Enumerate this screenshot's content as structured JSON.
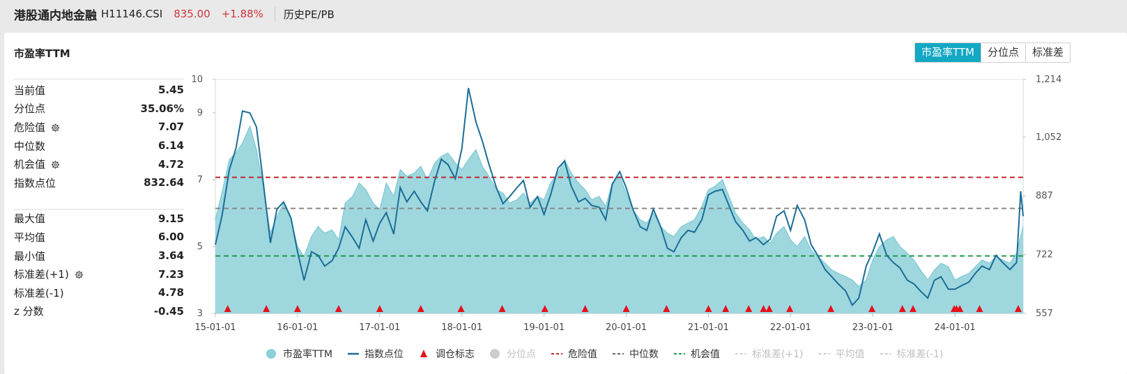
{
  "header": {
    "name": "港股通内地金融",
    "code": "H11146.CSI",
    "price": "835.00",
    "change": "+1.88%",
    "tab": "历史PE/PB"
  },
  "card": {
    "title": "市盈率TTM",
    "buttons": [
      "市盈率TTM",
      "分位点",
      "标准差"
    ],
    "active_button": "市盈率TTM"
  },
  "stats_top": [
    {
      "label": "当前值",
      "value": "5.45",
      "gear": false
    },
    {
      "label": "分位点",
      "value": "35.06%",
      "gear": false
    },
    {
      "label": "危险值",
      "value": "7.07",
      "gear": true
    },
    {
      "label": "中位数",
      "value": "6.14",
      "gear": false
    },
    {
      "label": "机会值",
      "value": "4.72",
      "gear": true
    },
    {
      "label": "指数点位",
      "value": "832.64",
      "gear": false
    }
  ],
  "stats_bottom": [
    {
      "label": "最大值",
      "value": "9.15",
      "gear": false
    },
    {
      "label": "平均值",
      "value": "6.00",
      "gear": false
    },
    {
      "label": "最小值",
      "value": "3.64",
      "gear": false
    },
    {
      "label": "标准差(+1)",
      "value": "7.23",
      "gear": true
    },
    {
      "label": "标准差(-1)",
      "value": "4.78",
      "gear": false
    },
    {
      "label": "z 分数",
      "value": "-0.45",
      "gear": false
    }
  ],
  "colors": {
    "area_fill": "#9fd7df",
    "area_line": "#7ccad6",
    "index_line": "#1a6d96",
    "danger": "#c0272d",
    "median": "#888888",
    "opportunity": "#1f9a4a",
    "marker": "#e8101a",
    "accent": "#13a8c4"
  },
  "chart_data": {
    "type": "line",
    "x_ticks": [
      "15-01-01",
      "16-01-01",
      "17-01-01",
      "18-01-01",
      "19-01-01",
      "20-01-01",
      "21-01-01",
      "22-01-01",
      "23-01-01",
      "24-01-01"
    ],
    "x_range": [
      2015.0,
      2024.83
    ],
    "y_left_ticks": [
      "10",
      "9",
      "7",
      "5",
      "3"
    ],
    "y_left_range": [
      3,
      10
    ],
    "y_right_ticks": [
      "1,214",
      "1,052",
      "887",
      "722",
      "557"
    ],
    "y_right_range": [
      557,
      1214
    ],
    "reference_lines": {
      "danger": 7.07,
      "median": 6.14,
      "opportunity": 4.72
    },
    "series": [
      {
        "name": "市盈率TTM",
        "kind": "area",
        "x": [
          2015.0,
          2015.08,
          2015.17,
          2015.25,
          2015.33,
          2015.42,
          2015.5,
          2015.58,
          2015.67,
          2015.75,
          2015.83,
          2015.92,
          2016.0,
          2016.08,
          2016.17,
          2016.25,
          2016.33,
          2016.42,
          2016.5,
          2016.58,
          2016.67,
          2016.75,
          2016.83,
          2016.92,
          2017.0,
          2017.08,
          2017.17,
          2017.25,
          2017.33,
          2017.42,
          2017.5,
          2017.58,
          2017.67,
          2017.75,
          2017.83,
          2017.92,
          2018.0,
          2018.08,
          2018.17,
          2018.25,
          2018.33,
          2018.42,
          2018.5,
          2018.58,
          2018.67,
          2018.75,
          2018.83,
          2018.92,
          2019.0,
          2019.08,
          2019.17,
          2019.25,
          2019.33,
          2019.42,
          2019.5,
          2019.58,
          2019.67,
          2019.75,
          2019.83,
          2019.92,
          2020.0,
          2020.08,
          2020.17,
          2020.25,
          2020.33,
          2020.42,
          2020.5,
          2020.58,
          2020.67,
          2020.75,
          2020.83,
          2020.92,
          2021.0,
          2021.08,
          2021.17,
          2021.25,
          2021.33,
          2021.42,
          2021.5,
          2021.58,
          2021.67,
          2021.75,
          2021.83,
          2021.92,
          2022.0,
          2022.08,
          2022.17,
          2022.25,
          2022.33,
          2022.42,
          2022.5,
          2022.58,
          2022.67,
          2022.75,
          2022.83,
          2022.92,
          2023.0,
          2023.08,
          2023.17,
          2023.25,
          2023.33,
          2023.42,
          2023.5,
          2023.58,
          2023.67,
          2023.75,
          2023.83,
          2023.92,
          2024.0,
          2024.08,
          2024.17,
          2024.25,
          2024.33,
          2024.42,
          2024.5,
          2024.58,
          2024.67,
          2024.75,
          2024.83
        ],
        "y": [
          5.8,
          6.6,
          7.6,
          7.8,
          8.1,
          8.6,
          7.9,
          6.8,
          5.4,
          5.9,
          6.3,
          5.8,
          5.0,
          4.7,
          5.3,
          5.6,
          5.4,
          5.5,
          5.2,
          6.3,
          6.5,
          6.9,
          6.7,
          6.3,
          6.1,
          6.9,
          6.5,
          7.3,
          7.1,
          7.2,
          7.4,
          7.0,
          7.5,
          7.7,
          7.8,
          7.5,
          7.3,
          7.6,
          7.9,
          7.4,
          7.1,
          6.7,
          6.6,
          6.3,
          6.4,
          6.6,
          6.3,
          6.5,
          6.4,
          6.9,
          7.2,
          7.6,
          7.2,
          6.9,
          6.7,
          6.4,
          6.5,
          6.2,
          6.9,
          7.1,
          6.6,
          6.1,
          5.8,
          5.7,
          6.0,
          5.6,
          5.4,
          5.3,
          5.6,
          5.7,
          5.8,
          6.2,
          6.7,
          6.8,
          7.0,
          6.5,
          6.0,
          5.7,
          5.5,
          5.2,
          5.3,
          5.1,
          5.4,
          5.6,
          5.2,
          5.0,
          5.3,
          4.9,
          4.7,
          4.5,
          4.3,
          4.2,
          4.1,
          4.0,
          3.8,
          4.0,
          4.6,
          5.0,
          5.2,
          5.3,
          5.0,
          4.8,
          4.6,
          4.3,
          4.0,
          4.3,
          4.5,
          4.4,
          4.0,
          4.1,
          4.2,
          4.4,
          4.6,
          4.5,
          4.7,
          4.6,
          4.5,
          4.8,
          5.6
        ]
      },
      {
        "name": "指数点位",
        "kind": "line",
        "x": [
          2015.0,
          2015.08,
          2015.17,
          2015.25,
          2015.33,
          2015.42,
          2015.5,
          2015.58,
          2015.67,
          2015.75,
          2015.83,
          2015.92,
          2016.0,
          2016.08,
          2016.17,
          2016.25,
          2016.33,
          2016.42,
          2016.5,
          2016.58,
          2016.67,
          2016.75,
          2016.83,
          2016.92,
          2017.0,
          2017.08,
          2017.17,
          2017.25,
          2017.33,
          2017.42,
          2017.5,
          2017.58,
          2017.67,
          2017.75,
          2017.83,
          2017.92,
          2018.0,
          2018.08,
          2018.17,
          2018.25,
          2018.33,
          2018.42,
          2018.5,
          2018.58,
          2018.67,
          2018.75,
          2018.83,
          2018.92,
          2019.0,
          2019.08,
          2019.17,
          2019.25,
          2019.33,
          2019.42,
          2019.5,
          2019.58,
          2019.67,
          2019.75,
          2019.83,
          2019.92,
          2020.0,
          2020.08,
          2020.17,
          2020.25,
          2020.33,
          2020.42,
          2020.5,
          2020.58,
          2020.67,
          2020.75,
          2020.83,
          2020.92,
          2021.0,
          2021.08,
          2021.17,
          2021.25,
          2021.33,
          2021.42,
          2021.5,
          2021.58,
          2021.67,
          2021.75,
          2021.83,
          2021.92,
          2022.0,
          2022.08,
          2022.17,
          2022.25,
          2022.33,
          2022.42,
          2022.5,
          2022.58,
          2022.67,
          2022.75,
          2022.83,
          2022.92,
          2023.0,
          2023.08,
          2023.17,
          2023.25,
          2023.33,
          2023.42,
          2023.5,
          2023.58,
          2023.67,
          2023.75,
          2023.83,
          2023.92,
          2024.0,
          2024.08,
          2024.17,
          2024.25,
          2024.33,
          2024.42,
          2024.5,
          2024.58,
          2024.67,
          2024.75,
          2024.8,
          2024.83
        ],
        "y": [
          750,
          830,
          960,
          1020,
          1125,
          1120,
          1080,
          930,
          755,
          850,
          870,
          825,
          730,
          650,
          730,
          720,
          690,
          705,
          740,
          800,
          770,
          740,
          820,
          760,
          810,
          840,
          780,
          910,
          870,
          900,
          870,
          845,
          930,
          990,
          975,
          935,
          1020,
          1190,
          1095,
          1040,
          975,
          910,
          865,
          885,
          910,
          930,
          855,
          885,
          835,
          890,
          965,
          985,
          915,
          870,
          880,
          860,
          855,
          820,
          920,
          955,
          910,
          850,
          800,
          790,
          850,
          800,
          740,
          730,
          770,
          790,
          785,
          820,
          890,
          900,
          905,
          860,
          815,
          790,
          760,
          770,
          750,
          765,
          830,
          845,
          790,
          860,
          820,
          750,
          720,
          680,
          660,
          640,
          620,
          580,
          600,
          690,
          730,
          780,
          720,
          700,
          685,
          650,
          640,
          620,
          600,
          650,
          660,
          625,
          625,
          635,
          645,
          670,
          690,
          680,
          720,
          700,
          680,
          700,
          900,
          830
        ]
      }
    ],
    "rebalance_markers_x": [
      2015.15,
      2015.62,
      2016.0,
      2016.5,
      2017.0,
      2017.5,
      2017.99,
      2018.49,
      2019.01,
      2019.5,
      2020.0,
      2020.49,
      2021.0,
      2021.21,
      2021.49,
      2021.67,
      2021.74,
      2021.99,
      2022.49,
      2022.99,
      2023.36,
      2023.49,
      2023.99,
      2024.02,
      2024.06,
      2024.3,
      2024.77
    ],
    "legend": [
      {
        "label": "市盈率TTM",
        "symbol": "circle",
        "color": "#8ad1dc",
        "muted": false
      },
      {
        "label": "指数点位",
        "symbol": "line",
        "color": "#1a6d96",
        "muted": false
      },
      {
        "label": "调仓标志",
        "symbol": "triangle",
        "color": "#e8101a",
        "muted": false
      },
      {
        "label": "分位点",
        "symbol": "circle",
        "color": "#cccccc",
        "muted": true
      },
      {
        "label": "危险值",
        "symbol": "dash",
        "color": "#c0272d",
        "muted": false
      },
      {
        "label": "中位数",
        "symbol": "dash",
        "color": "#666666",
        "muted": false
      },
      {
        "label": "机会值",
        "symbol": "dash",
        "color": "#1f9a4a",
        "muted": false
      },
      {
        "label": "标准差(+1)",
        "symbol": "dash",
        "color": "#cccccc",
        "muted": true
      },
      {
        "label": "平均值",
        "symbol": "dash",
        "color": "#cccccc",
        "muted": true
      },
      {
        "label": "标准差(-1)",
        "symbol": "dash",
        "color": "#cccccc",
        "muted": true
      }
    ]
  }
}
